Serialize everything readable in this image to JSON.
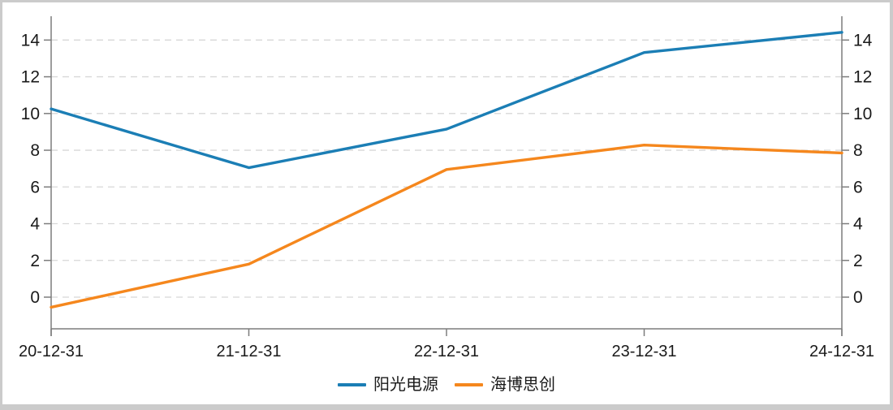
{
  "chart_data": {
    "type": "line",
    "title": "",
    "categories": [
      "20-12-31",
      "21-12-31",
      "22-12-31",
      "23-12-31",
      "24-12-31"
    ],
    "series": [
      {
        "name": "阳光电源",
        "color": "#1b7eb5",
        "values": [
          10.25,
          7.05,
          9.15,
          13.32,
          14.42
        ]
      },
      {
        "name": "海博思创",
        "color": "#f5871d",
        "values": [
          -0.55,
          1.8,
          6.95,
          8.28,
          7.85
        ]
      }
    ],
    "xlabel": "",
    "ylabel": "",
    "y_ticks": [
      0,
      2,
      4,
      6,
      8,
      10,
      12,
      14
    ],
    "ylim": [
      -1.72,
      15.3
    ],
    "grid": "horizontal-dashed",
    "axes": {
      "left": true,
      "right": true,
      "bottom": true,
      "top": false
    },
    "legend_position": "bottom-center"
  },
  "styles": {
    "background": "#ffffff",
    "frame_border": "#cbcbcb",
    "axis_color": "#7d7d7d",
    "grid_color": "#d8d8d8",
    "text_color": "#1a1a1a"
  }
}
